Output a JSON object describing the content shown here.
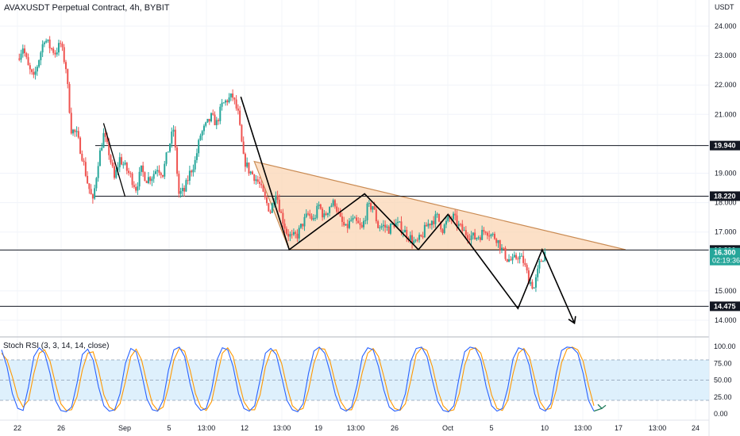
{
  "header": {
    "title": "AVAXUSDT Perpetual Contract, 4h, BYBIT",
    "currency": "USDT"
  },
  "colors": {
    "up": "#26a69a",
    "down": "#ef5350",
    "triangle_fill": "#fbd6b4",
    "triangle_stroke": "#c98a52",
    "rsi_band": "#d6ecfb",
    "rsi_k": "#2962ff",
    "rsi_d": "#ff9800",
    "price_tag": "#26a69a",
    "level_tag": "#131722"
  },
  "chart_data": [
    {
      "type": "candlestick",
      "title": "AVAXUSDT Perpetual Contract, 4h, BYBIT",
      "y_unit": "USDT",
      "ylim": [
        13.7,
        24.4
      ],
      "y_ticks": [
        "24.000",
        "23.000",
        "22.000",
        "21.000",
        "19.000",
        "18.000",
        "17.000",
        "15.000",
        "14.000"
      ],
      "x_ticks": [
        "22",
        "26",
        "Sep",
        "5",
        "13:00",
        "12",
        "13:00",
        "19",
        "13:00",
        "26",
        "Oct",
        "5",
        "10",
        "13:00",
        "17",
        "13:00",
        "24"
      ],
      "close_path": [
        [
          "Aug 22 00:00",
          22.9
        ],
        [
          "Aug 22 12:00",
          23.3
        ],
        [
          "Aug 23 00:00",
          22.6
        ],
        [
          "Aug 23 12:00",
          22.2
        ],
        [
          "Aug 24 00:00",
          22.9
        ],
        [
          "Aug 24 12:00",
          23.6
        ],
        [
          "Aug 25 00:00",
          23.3
        ],
        [
          "Aug 25 12:00",
          23.1
        ],
        [
          "Aug 26 00:00",
          23.4
        ],
        [
          "Aug 26 12:00",
          22.6
        ],
        [
          "Aug 27 00:00",
          20.5
        ],
        [
          "Aug 27 12:00",
          20.3
        ],
        [
          "Aug 28 00:00",
          19.6
        ],
        [
          "Aug 28 12:00",
          18.7
        ],
        [
          "Aug 29 00:00",
          18.0
        ],
        [
          "Aug 29 12:00",
          19.4
        ],
        [
          "Aug 30 00:00",
          20.3
        ],
        [
          "Aug 30 12:00",
          19.7
        ],
        [
          "Aug 31 00:00",
          18.8
        ],
        [
          "Aug 31 12:00",
          19.5
        ],
        [
          "Sep 01 00:00",
          19.2
        ],
        [
          "Sep 01 12:00",
          18.9
        ],
        [
          "Sep 02 00:00",
          18.5
        ],
        [
          "Sep 02 12:00",
          19.1
        ],
        [
          "Sep 03 00:00",
          18.8
        ],
        [
          "Sep 03 12:00",
          18.9
        ],
        [
          "Sep 04 00:00",
          19.2
        ],
        [
          "Sep 04 12:00",
          19.0
        ],
        [
          "Sep 05 00:00",
          19.8
        ],
        [
          "Sep 05 12:00",
          20.5
        ],
        [
          "Sep 06 00:00",
          18.3
        ],
        [
          "Sep 06 12:00",
          18.4
        ],
        [
          "Sep 07 00:00",
          19.0
        ],
        [
          "Sep 07 12:00",
          19.4
        ],
        [
          "Sep 08 00:00",
          20.3
        ],
        [
          "Sep 08 12:00",
          20.6
        ],
        [
          "Sep 09 00:00",
          20.9
        ],
        [
          "Sep 09 12:00",
          20.7
        ],
        [
          "Sep 10 00:00",
          21.3
        ],
        [
          "Sep 10 12:00",
          21.5
        ],
        [
          "Sep 11 00:00",
          21.6
        ],
        [
          "Sep 11 12:00",
          21.0
        ],
        [
          "Sep 12 00:00",
          19.5
        ],
        [
          "Sep 12 12:00",
          19.1
        ],
        [
          "Sep 13 00:00",
          18.9
        ],
        [
          "Sep 13 12:00",
          18.6
        ],
        [
          "Sep 14 00:00",
          18.1
        ],
        [
          "Sep 14 12:00",
          17.7
        ],
        [
          "Sep 15 00:00",
          18.4
        ],
        [
          "Sep 15 12:00",
          17.6
        ],
        [
          "Sep 16 00:00",
          17.0
        ],
        [
          "Sep 16 12:00",
          16.8
        ],
        [
          "Sep 17 00:00",
          16.9
        ],
        [
          "Sep 17 12:00",
          17.3
        ],
        [
          "Sep 18 00:00",
          17.6
        ],
        [
          "Sep 18 12:00",
          17.4
        ],
        [
          "Sep 19 00:00",
          17.9
        ],
        [
          "Sep 19 12:00",
          17.5
        ],
        [
          "Sep 20 00:00",
          17.9
        ],
        [
          "Sep 20 12:00",
          18.0
        ],
        [
          "Sep 21 00:00",
          17.4
        ],
        [
          "Sep 21 12:00",
          17.1
        ],
        [
          "Sep 22 00:00",
          17.4
        ],
        [
          "Sep 22 12:00",
          17.3
        ],
        [
          "Sep 23 00:00",
          17.1
        ],
        [
          "Sep 23 12:00",
          17.8
        ],
        [
          "Sep 24 00:00",
          17.9
        ],
        [
          "Sep 24 12:00",
          17.2
        ],
        [
          "Sep 25 00:00",
          17.2
        ],
        [
          "Sep 25 12:00",
          17.1
        ],
        [
          "Sep 26 00:00",
          17.3
        ],
        [
          "Sep 26 12:00",
          17.2
        ],
        [
          "Sep 27 00:00",
          17.0
        ],
        [
          "Sep 27 12:00",
          16.8
        ],
        [
          "Sep 28 00:00",
          16.6
        ],
        [
          "Sep 28 12:00",
          16.8
        ],
        [
          "Sep 29 00:00",
          17.2
        ],
        [
          "Sep 29 12:00",
          17.4
        ],
        [
          "Sep 30 00:00",
          17.5
        ],
        [
          "Sep 30 12:00",
          17.1
        ],
        [
          "Oct 01 00:00",
          17.4
        ],
        [
          "Oct 01 12:00",
          17.5
        ],
        [
          "Oct 02 00:00",
          17.2
        ],
        [
          "Oct 02 12:00",
          17.0
        ],
        [
          "Oct 03 00:00",
          16.9
        ],
        [
          "Oct 03 12:00",
          16.8
        ],
        [
          "Oct 04 00:00",
          16.9
        ],
        [
          "Oct 04 12:00",
          17.1
        ],
        [
          "Oct 05 00:00",
          16.9
        ],
        [
          "Oct 05 12:00",
          16.8
        ],
        [
          "Oct 06 00:00",
          16.4
        ],
        [
          "Oct 06 12:00",
          16.1
        ],
        [
          "Oct 07 00:00",
          16.0
        ],
        [
          "Oct 07 12:00",
          16.2
        ],
        [
          "Oct 08 00:00",
          16.0
        ],
        [
          "Oct 08 12:00",
          15.4
        ],
        [
          "Oct 09 00:00",
          15.1
        ],
        [
          "Oct 09 12:00",
          15.9
        ],
        [
          "Oct 10 00:00",
          16.3
        ]
      ],
      "horizontal_levels": [
        {
          "value": 19.94,
          "label": "19.940"
        },
        {
          "value": 18.22,
          "label": "18.220"
        },
        {
          "value": 16.39,
          "label": "16.390"
        },
        {
          "value": 14.475,
          "label": "14.475"
        }
      ],
      "last_price": {
        "value": 16.3,
        "label": "16.300",
        "countdown": "02:19:36"
      },
      "annotations": {
        "descending_triangle": [
          [
            "Sep 13 00:00",
            19.4
          ],
          [
            "Oct 17 12:00",
            16.4
          ],
          [
            "Sep 16 06:00",
            16.4
          ]
        ],
        "zigzag": [
          [
            "Sep 11 18:00",
            21.6
          ],
          [
            "Sep 16 06:00",
            16.4
          ],
          [
            "Sep 23 06:00",
            18.3
          ],
          [
            "Sep 28 06:00",
            16.4
          ],
          [
            "Oct 01 00:00",
            17.6
          ],
          [
            "Oct 07 12:00",
            14.4
          ],
          [
            "Oct 09 18:00",
            16.4
          ],
          [
            "Oct 12 18:00",
            13.9
          ]
        ],
        "trendline": [
          [
            "Aug 30 00:00",
            20.7
          ],
          [
            "Sep 01 00:00",
            18.2
          ]
        ]
      }
    },
    {
      "type": "line",
      "title": "Stoch RSI (3, 3, 14, 14, close)",
      "ylim": [
        -5,
        108
      ],
      "y_ticks": [
        "100.00",
        "75.00",
        "50.00",
        "25.00",
        "0.00"
      ],
      "band": [
        20,
        80
      ],
      "series": [
        {
          "name": "K",
          "values": [
            95,
            70,
            30,
            8,
            5,
            40,
            85,
            98,
            90,
            60,
            20,
            5,
            3,
            10,
            45,
            88,
            96,
            80,
            40,
            12,
            4,
            6,
            30,
            75,
            97,
            92,
            60,
            22,
            6,
            4,
            20,
            65,
            95,
            99,
            85,
            45,
            15,
            5,
            8,
            35,
            80,
            98,
            95,
            70,
            30,
            8,
            4,
            12,
            50,
            90,
            97,
            88,
            55,
            20,
            6,
            3,
            15,
            60,
            93,
            99,
            90,
            62,
            28,
            8,
            4,
            10,
            42,
            85,
            98,
            95,
            70,
            35,
            10,
            4,
            6,
            30,
            78,
            97,
            99,
            85,
            50,
            18,
            5,
            3,
            12,
            55,
            92,
            99,
            97,
            80,
            40,
            12,
            4,
            8,
            38,
            82,
            98,
            95,
            72,
            30,
            8,
            4,
            15,
            60,
            94,
            99,
            98,
            90,
            60,
            20,
            4
          ]
        },
        {
          "name": "D",
          "values": [
            90,
            80,
            55,
            25,
            10,
            20,
            60,
            90,
            95,
            78,
            45,
            15,
            5,
            6,
            25,
            65,
            90,
            92,
            65,
            28,
            10,
            5,
            15,
            48,
            85,
            96,
            80,
            45,
            15,
            5,
            10,
            40,
            80,
            97,
            93,
            65,
            30,
            10,
            5,
            18,
            55,
            90,
            98,
            85,
            50,
            18,
            6,
            6,
            28,
            70,
            93,
            95,
            75,
            40,
            12,
            5,
            8,
            35,
            75,
            97,
            96,
            78,
            45,
            18,
            6,
            6,
            25,
            62,
            90,
            97,
            85,
            55,
            22,
            8,
            5,
            15,
            50,
            88,
            98,
            94,
            70,
            35,
            12,
            4,
            6,
            30,
            72,
            95,
            98,
            90,
            62,
            28,
            8,
            5,
            20,
            60,
            90,
            97,
            85,
            52,
            18,
            6,
            8,
            35,
            76,
            96,
            99,
            95,
            78,
            42,
            12
          ]
        }
      ]
    }
  ]
}
